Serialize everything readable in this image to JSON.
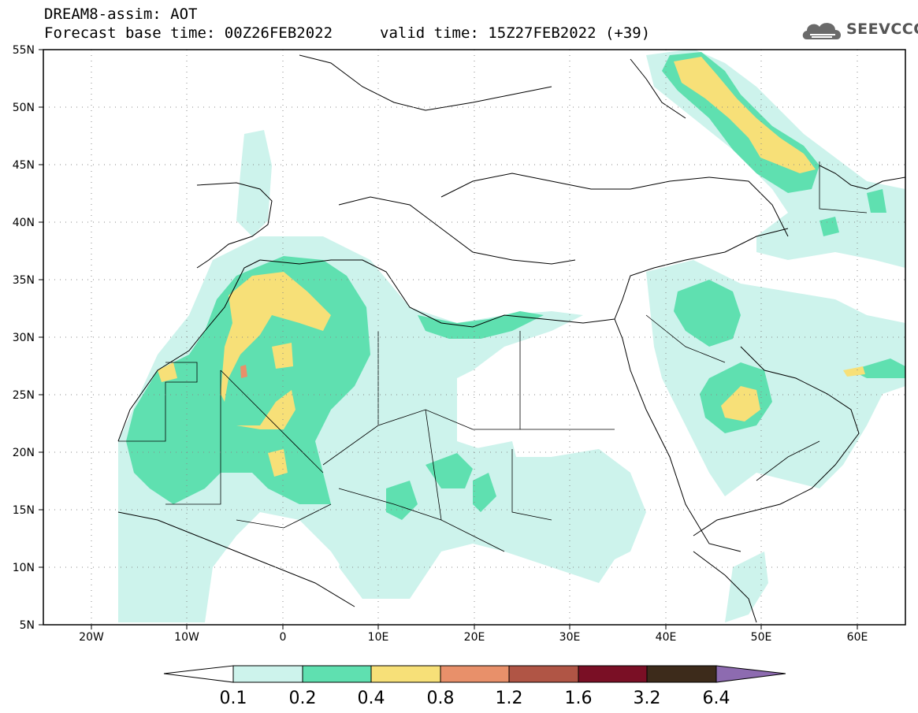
{
  "header": {
    "line1": "DREAM8-assim: AOT",
    "base_time": "Forecast base time: 00Z26FEB2022",
    "valid_time": "valid time: 15Z27FEB2022 (+39)"
  },
  "logo": {
    "text": "SEEVCCC",
    "icon": "cloud-icon"
  },
  "map": {
    "lon_range": [
      -25,
      65
    ],
    "lat_range": [
      5,
      55
    ],
    "lat_ticks": [
      "5N",
      "10N",
      "15N",
      "20N",
      "25N",
      "30N",
      "35N",
      "40N",
      "45N",
      "50N",
      "55N"
    ],
    "lon_ticks": [
      "20W",
      "10W",
      "0",
      "10E",
      "20E",
      "30E",
      "40E",
      "50E",
      "60E"
    ],
    "grid": "dotted"
  },
  "colorbar": {
    "colors": [
      "#cdf3ec",
      "#5fe0b0",
      "#f7e078",
      "#e8906a",
      "#b05545",
      "#7a0f25",
      "#3d2b1b",
      "#8d6bb0"
    ],
    "labels": [
      "0.1",
      "0.2",
      "0.4",
      "0.8",
      "1.2",
      "1.6",
      "3.2",
      "6.4"
    ]
  }
}
